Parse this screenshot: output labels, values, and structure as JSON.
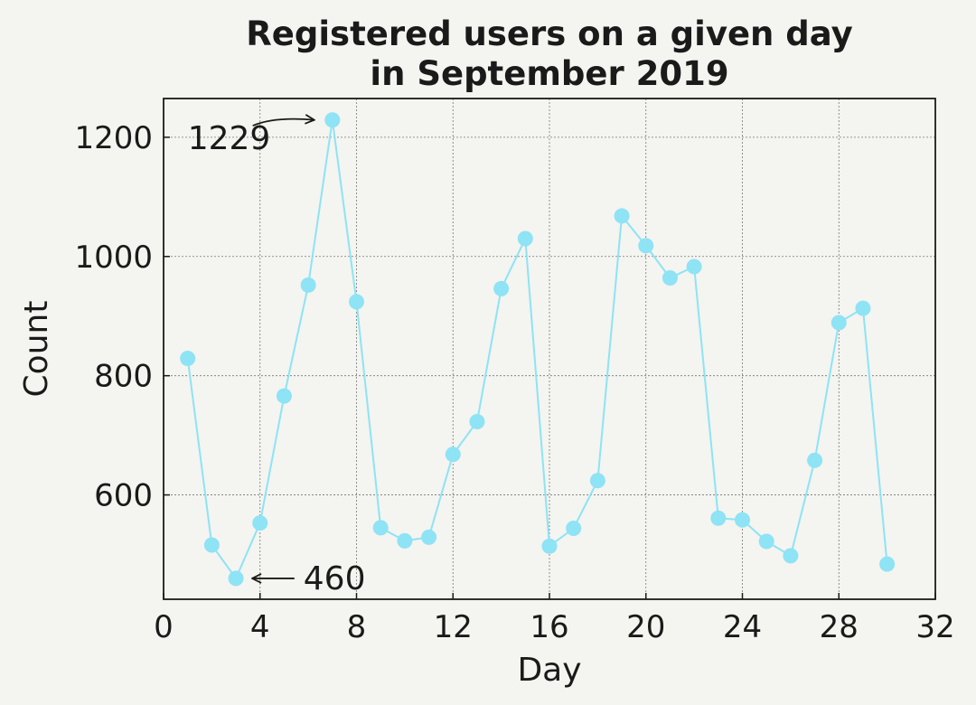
{
  "chart_data": {
    "type": "line",
    "title": "Registered users on a given day\nin September 2019",
    "xlabel": "Day",
    "ylabel": "Count",
    "xlim": [
      0,
      32
    ],
    "ylim": [
      425,
      1265
    ],
    "xticks": [
      0,
      4,
      8,
      12,
      16,
      20,
      24,
      28,
      32
    ],
    "yticks": [
      600,
      800,
      1000,
      1200
    ],
    "grid": true,
    "series": [
      {
        "color": "#8ee3f5",
        "marker": "circle",
        "x": [
          1,
          2,
          3,
          4,
          5,
          6,
          7,
          8,
          9,
          10,
          11,
          12,
          13,
          14,
          15,
          16,
          17,
          18,
          19,
          20,
          21,
          22,
          23,
          24,
          25,
          26,
          27,
          28,
          29,
          30
        ],
        "y": [
          829,
          516,
          460,
          553,
          766,
          952,
          1229,
          924,
          545,
          523,
          529,
          668,
          723,
          946,
          1030,
          514,
          544,
          624,
          1068,
          1018,
          964,
          983,
          561,
          558,
          522,
          498,
          658,
          889,
          913,
          484
        ]
      }
    ],
    "annotations": [
      {
        "text": "1229",
        "x": 7,
        "y": 1229,
        "text_x": 1,
        "text_y": 1180
      },
      {
        "text": "460",
        "x": 3,
        "y": 460,
        "text_x": 5.8,
        "text_y": 460
      }
    ]
  }
}
